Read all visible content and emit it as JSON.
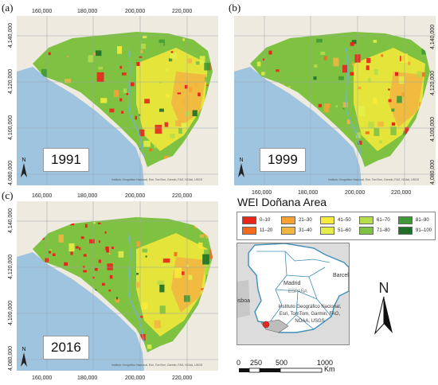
{
  "panels": [
    {
      "label": "(a)",
      "year": "1991"
    },
    {
      "label": "(b)",
      "year": "1999"
    },
    {
      "label": "(c)",
      "year": "2016"
    }
  ],
  "x_ticks": [
    "160,000",
    "180,000",
    "200,000",
    "220,000"
  ],
  "y_ticks": [
    "4,140,000",
    "4,120,000",
    "4,100,000",
    "4,080,000"
  ],
  "north_label": "N",
  "attribution": "Instituto Geográfico Nacional, Esri, TomTom, Garmin, FAO, NOAA, USGS",
  "legend": {
    "title": "WEI Doñana Area",
    "classes": [
      {
        "range": "0–10",
        "color": "#e8261c"
      },
      {
        "range": "11–20",
        "color": "#f26a21"
      },
      {
        "range": "21–30",
        "color": "#f7a233"
      },
      {
        "range": "31–40",
        "color": "#f2b640"
      },
      {
        "range": "41–50",
        "color": "#f6ea3a"
      },
      {
        "range": "51–60",
        "color": "#e3ee48"
      },
      {
        "range": "61–70",
        "color": "#b6dc4a"
      },
      {
        "range": "71–80",
        "color": "#7fc242"
      },
      {
        "range": "81–90",
        "color": "#3f9a36"
      },
      {
        "range": "91–100",
        "color": "#1e6f25"
      }
    ]
  },
  "inset": {
    "city1": "Madrid",
    "country": "ESPAÑA",
    "city2": "Barcelona",
    "city3": "Lisboa",
    "attribution": "Instituto Geográfico Nacional, Esri, TomTom, Garmin, FAO, NOAA, USGS"
  },
  "north_arrow": "N",
  "scale": {
    "ticks": [
      "0",
      "250",
      "500",
      "1000"
    ],
    "unit": "Km"
  }
}
